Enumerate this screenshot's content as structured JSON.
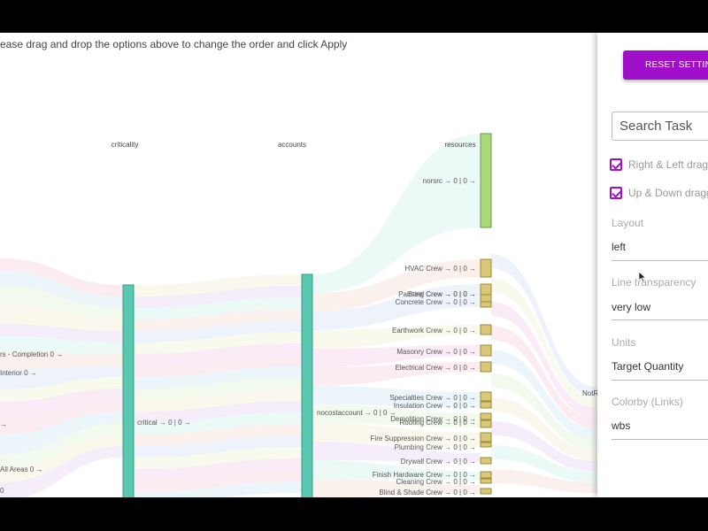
{
  "instruction": "ease drag and drop the options above to change the order and click Apply",
  "dimensions": [
    "criticality",
    "accounts",
    "resources"
  ],
  "left_labels": [
    "rs - Completion 0 →",
    "Interior 0 →",
    "→",
    "All Areas 0 →",
    "0"
  ],
  "criticality_node": "critical → 0 | 0 →",
  "accounts_node": "nocostaccount → 0 | 0 →",
  "resource_nodes": [
    "norsrc → 0 | 0 →",
    "HVAC Crew → 0 | 0 →",
    "Steel Crew → 0 | 0 →",
    "Painting Crew → 0 | 0 →",
    "Concrete Crew → 0 | 0 →",
    "Earthwork Crew → 0 | 0 →",
    "Masonry Crew → 0 | 0 →",
    "Electrical Crew → 0 | 0 →",
    "Specialties Crew → 0 | 0 →",
    "Insulation Crew → 0 | 0 →",
    "Demolition Crew → 0 | 0 →",
    "Roofing Crew → 0 | 0 →",
    "Fire Suppression Crew → 0 | 0 →",
    "Plumbing Crew → 0 | 0 →",
    "Drywall Crew → 0 | 0 →",
    "Finish Hardware Crew → 0 | 0 →",
    "Cleaning Crew → 0 | 0 →",
    "Blind & Shade Crew → 0 | 0 →"
  ],
  "right_edge_label": "NotR",
  "panel": {
    "reset_label": "RESET SETTINGS",
    "search_placeholder": "Search Task",
    "checkbox_1": "Right & Left dragging",
    "checkbox_2": "Up & Down dragging",
    "layout_label": "Layout",
    "layout_value": "left",
    "transparency_label": "Line transparency",
    "transparency_value": "very low",
    "units_label": "Units",
    "units_value": "Target Quantity",
    "colorby_label": "Colorby (Links)",
    "colorby_value": "wbs"
  },
  "colors": {
    "accent": "#a010c8",
    "teal_node": "#5ac8b0",
    "green_node": "#a8d878",
    "yellow_node": "#d8c878"
  }
}
